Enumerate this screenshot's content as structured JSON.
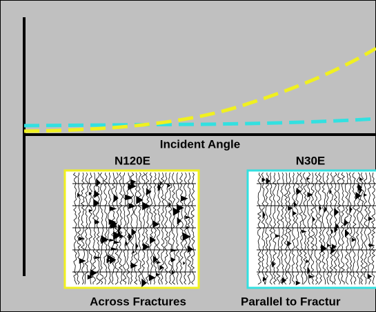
{
  "labels": {
    "x_axis": "Incident Angle",
    "left_panel": {
      "title": "N120E",
      "caption": "Across Fractures"
    },
    "right_panel": {
      "title": "N30E",
      "caption": "Parallel to Fractur"
    }
  }
}
